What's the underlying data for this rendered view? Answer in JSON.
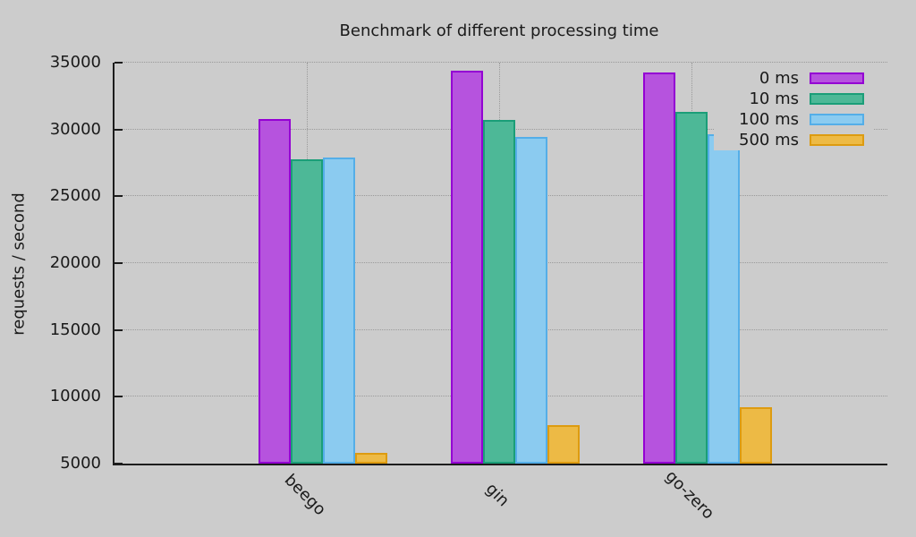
{
  "chart_data": {
    "type": "bar",
    "title": "Benchmark of different processing time",
    "ylabel": "requests / second",
    "xlabel": "",
    "categories": [
      "beego",
      "gin",
      "go-zero"
    ],
    "series": [
      {
        "name": "0 ms",
        "fill": "#b653de",
        "border": "#9400d3",
        "values": [
          30800,
          34370,
          34280
        ]
      },
      {
        "name": "10 ms",
        "fill": "#4db897",
        "border": "#1b9e78",
        "values": [
          27770,
          30700,
          31330
        ]
      },
      {
        "name": "100 ms",
        "fill": "#8bcbf0",
        "border": "#54aee8",
        "values": [
          27900,
          29420,
          29640
        ]
      },
      {
        "name": "500 ms",
        "fill": "#edba45",
        "border": "#dd9b10",
        "values": [
          5800,
          7880,
          9210
        ]
      }
    ],
    "ylim": [
      5000,
      35000
    ],
    "ytick_step": 5000,
    "grid": true,
    "legend_position": "top-right",
    "colors": {
      "background": "#cccccc",
      "grid": "#9a9a9a",
      "axis": "#1c1c1c",
      "text": "#1a1a1a"
    }
  }
}
